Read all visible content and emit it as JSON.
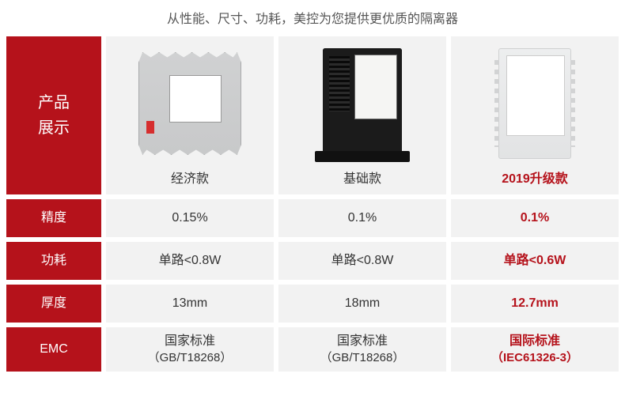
{
  "header": {
    "title": "从性能、尺寸、功耗，美控为您提供更优质的隔离器"
  },
  "labels": {
    "product_display_line1": "产品",
    "product_display_line2": "展示",
    "precision": "精度",
    "power": "功耗",
    "thickness": "厚度",
    "emc": "EMC"
  },
  "products": {
    "economy": {
      "name": "经济款"
    },
    "basic": {
      "name": "基础款"
    },
    "upgrade": {
      "name": "2019升级款"
    }
  },
  "rows": {
    "precision": {
      "economy": "0.15%",
      "basic": "0.1%",
      "upgrade": "0.1%"
    },
    "power": {
      "economy": "单路<0.8W",
      "basic": "单路<0.8W",
      "upgrade": "单路<0.6W"
    },
    "thickness": {
      "economy": "13mm",
      "basic": "18mm",
      "upgrade": "12.7mm"
    },
    "emc": {
      "economy_line1": "国家标准",
      "economy_line2": "（GB/T18268）",
      "basic_line1": "国家标准",
      "basic_line2": "（GB/T18268）",
      "upgrade_line1": "国际标准",
      "upgrade_line2": "（IEC61326-3）"
    }
  },
  "colors": {
    "brand_red": "#b5121b",
    "cell_bg": "#f2f2f2",
    "text": "#333333",
    "subtext": "#555555"
  }
}
